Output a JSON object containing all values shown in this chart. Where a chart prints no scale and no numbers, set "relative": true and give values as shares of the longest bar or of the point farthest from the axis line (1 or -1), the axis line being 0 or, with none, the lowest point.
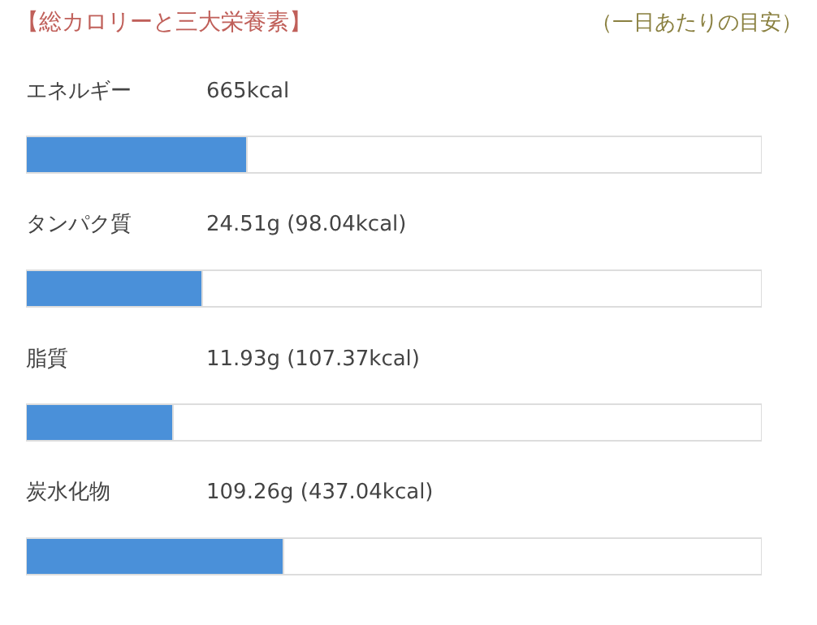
{
  "chart_data": {
    "type": "bar",
    "orientation": "horizontal",
    "relative": true,
    "stacked": true,
    "title": "【総カロリーと三大栄養素】",
    "subtitle": "（一日あたりの目安）",
    "categories": [
      "エネルギー",
      "タンパク質",
      "脂質",
      "炭水化物"
    ],
    "series": [
      {
        "color": "#4a90d9",
        "values": [
          0.3,
          0.24,
          0.2,
          0.35
        ]
      },
      {
        "color": "#ffffff",
        "values": [
          0.7,
          0.76,
          0.8,
          0.65
        ]
      }
    ],
    "annotations": [
      "665kcal",
      "24.51g (98.04kcal)",
      "11.93g (107.37kcal)",
      "109.26g (437.04kcal)"
    ],
    "tick_labels": false
  }
}
